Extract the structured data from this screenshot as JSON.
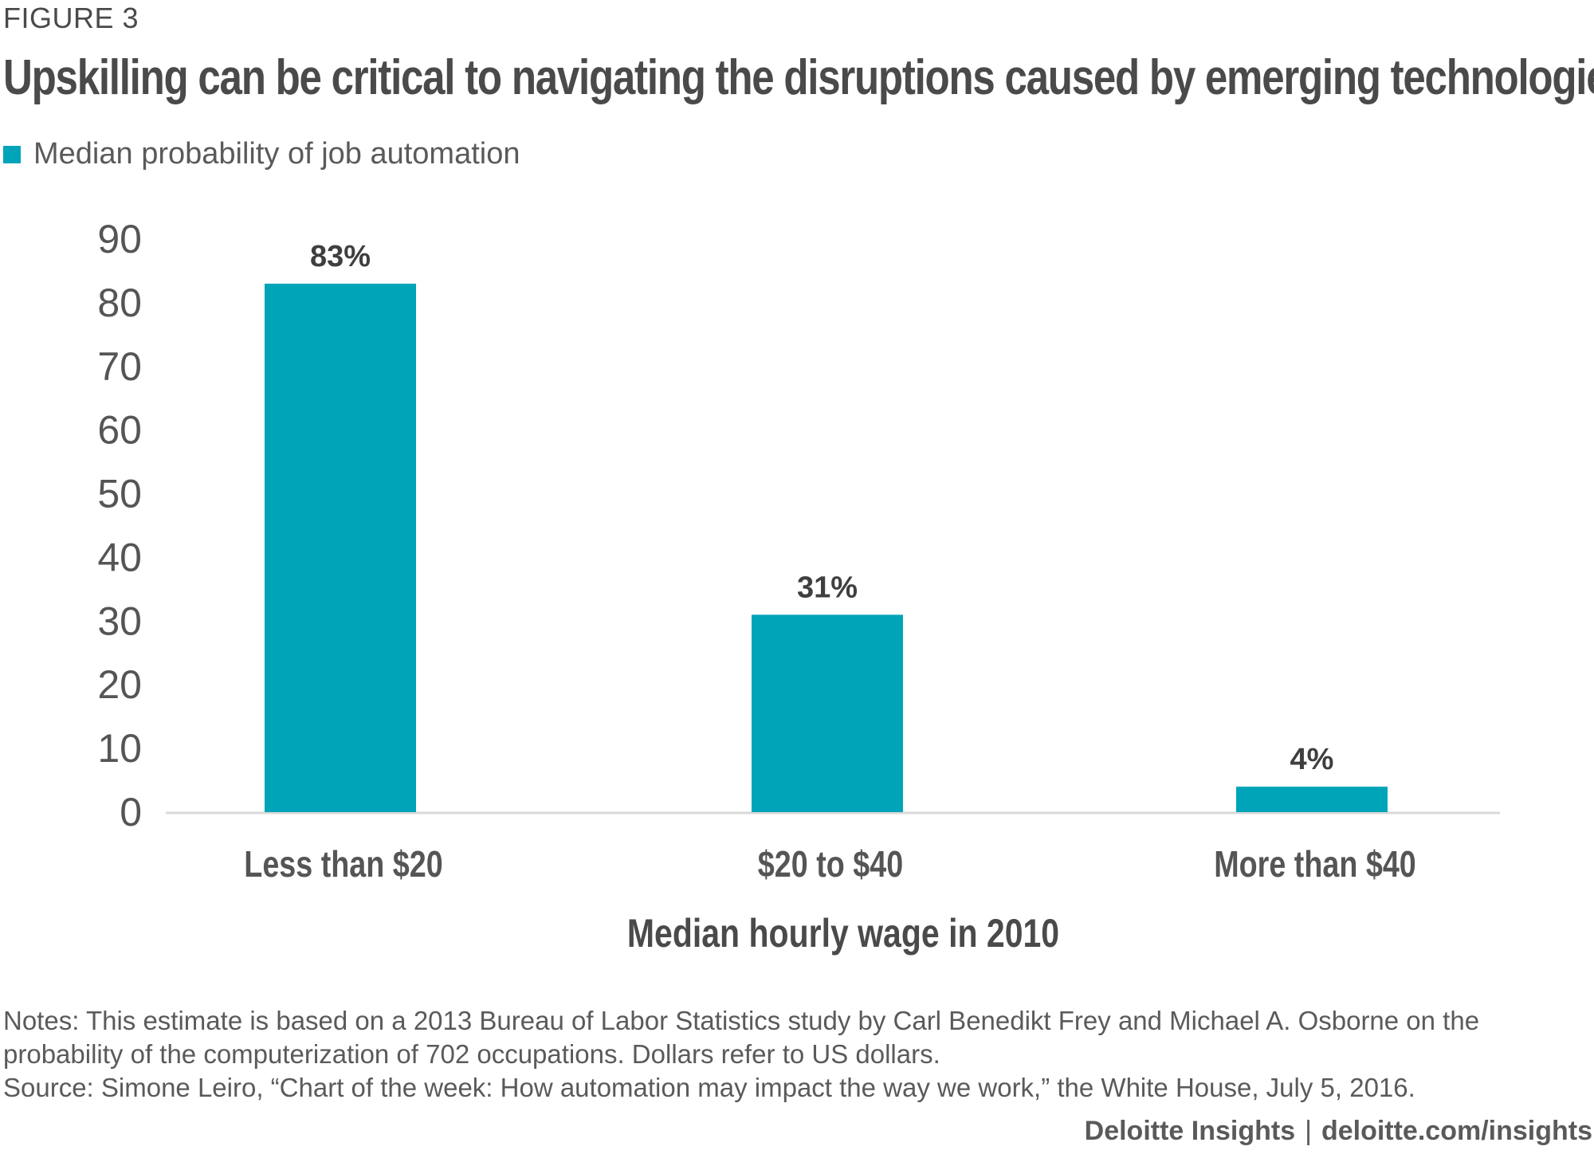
{
  "figure_label": "FIGURE 3",
  "title": "Upskilling can be critical to navigating the disruptions caused by emerging technologies",
  "legend": {
    "label": "Median probability of job automation",
    "color": "#00a4b9"
  },
  "chart_data": {
    "type": "bar",
    "title": "Upskilling can be critical to navigating the disruptions caused by emerging technologies",
    "xlabel": "Median hourly wage in 2010",
    "ylabel": "",
    "categories": [
      "Less than $20",
      "$20 to $40",
      "More than $40"
    ],
    "series": [
      {
        "name": "Median probability of job automation",
        "values": [
          83,
          31,
          4
        ],
        "color": "#00a4b9"
      }
    ],
    "data_labels": [
      "83%",
      "31%",
      "4%"
    ],
    "ylim": [
      0,
      90
    ],
    "yticks": [
      "0",
      "10",
      "20",
      "30",
      "40",
      "50",
      "60",
      "70",
      "80",
      "90"
    ],
    "grid": false,
    "legend_position": "top-left"
  },
  "notes": [
    "Notes: This estimate is based on a 2013 Bureau of Labor Statistics study by Carl Benedikt Frey and Michael A. Osborne on the probability of the computerization of 702 occupations. Dollars refer to US dollars.",
    "Source: Simone Leiro, “Chart of the week: How automation may impact the way we work,” the White House, July 5, 2016."
  ],
  "credit": {
    "brand": "Deloitte Insights",
    "separator": "|",
    "url": "deloitte.com/insights"
  }
}
